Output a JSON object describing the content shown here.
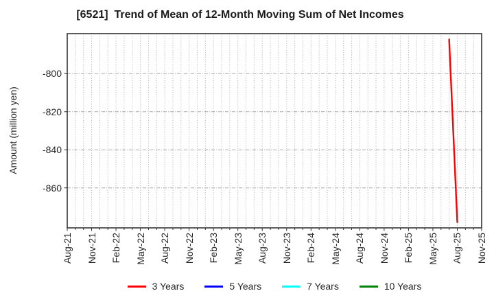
{
  "page": {
    "background": "#ffffff",
    "axis_color": "#333333",
    "grid_color": "#aaaaaa",
    "text_color": "#262626"
  },
  "chart_data": {
    "type": "line",
    "title": "[6521]  Trend of Mean of 12-Month Moving Sum of Net Incomes",
    "xlabel": "",
    "ylabel": "Amount (million yen)",
    "x_tick_labels": [
      "Aug-21",
      "Nov-21",
      "Feb-22",
      "May-22",
      "Aug-22",
      "Nov-22",
      "Feb-23",
      "May-23",
      "Aug-23",
      "Nov-23",
      "Feb-24",
      "May-24",
      "Aug-24",
      "Nov-24",
      "Feb-25",
      "May-25",
      "Aug-25",
      "Nov-25"
    ],
    "x_start_month": "Aug-21",
    "x_end_month": "Nov-25",
    "months_per_gridline": 1,
    "months_per_label": 3,
    "y_ticks": [
      -800,
      -820,
      -840,
      -860
    ],
    "ylim": [
      -881,
      -779
    ],
    "grid": true,
    "legend_position": "bottom-center",
    "series": [
      {
        "name": "3 Years",
        "color": "#ff0000",
        "points": [
          [
            "Jul-25",
            -782
          ],
          [
            "Aug-25",
            -878
          ]
        ]
      },
      {
        "name": "5 Years",
        "color": "#0000ff",
        "points": []
      },
      {
        "name": "7 Years",
        "color": "#00ffff",
        "points": []
      },
      {
        "name": "10 Years",
        "color": "#008000",
        "points": []
      }
    ]
  }
}
